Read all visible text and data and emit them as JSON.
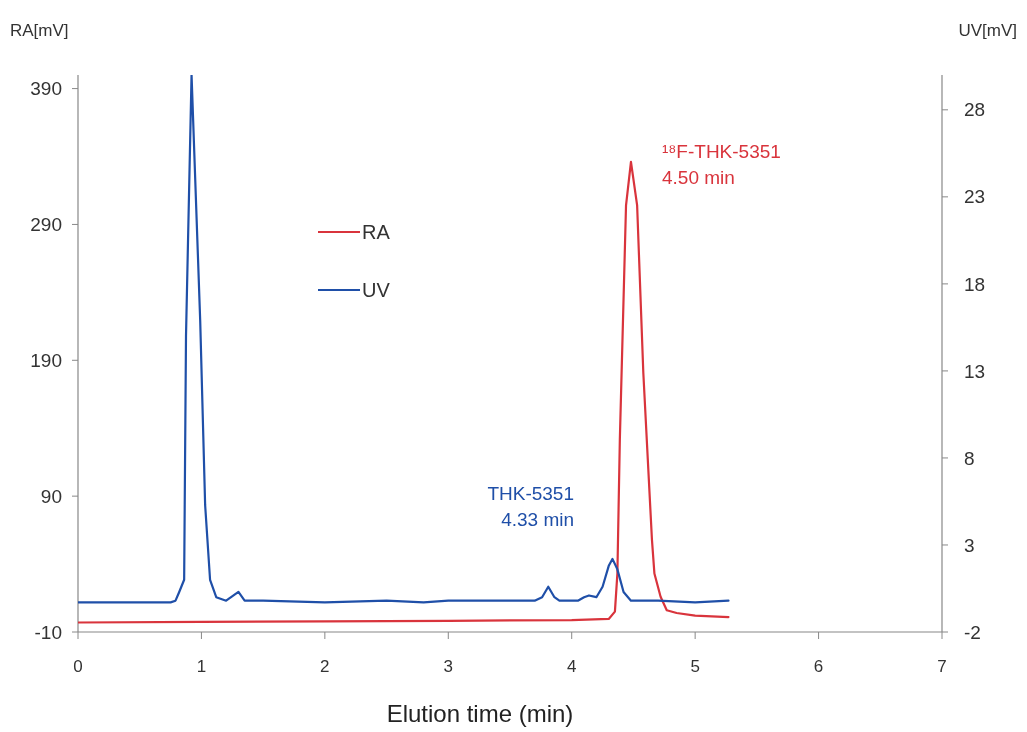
{
  "chart_data": {
    "type": "line",
    "xlabel": "Elution time (min)",
    "ylabel": "RA[mV]",
    "y2label": "UV[mV]",
    "xlim": [
      0,
      7
    ],
    "xticks": [
      0,
      1,
      2,
      3,
      4,
      5,
      6,
      7
    ],
    "ylim": [
      -10,
      400
    ],
    "yticks": [
      -10,
      90,
      190,
      290,
      390
    ],
    "y2lim": [
      -2,
      30
    ],
    "y2ticks": [
      -2,
      3,
      8,
      13,
      18,
      23,
      28
    ],
    "grid": false,
    "legend": "top left",
    "annotations": [
      "¹⁸F-THK-5351\n4.50 min",
      "THK-5351\n4.33 min"
    ],
    "series": [
      {
        "name": "RA",
        "color": "#d9343c",
        "x": [
          0,
          1,
          2,
          3,
          4,
          4.3,
          4.35,
          4.37,
          4.39,
          4.44,
          4.48,
          4.53,
          4.58,
          4.65,
          4.67,
          4.72,
          4.77,
          4.85,
          5,
          5.27
        ],
        "values": [
          -3,
          -2.6,
          -2.2,
          -1.8,
          -1.2,
          -0.4,
          5,
          33,
          132,
          304,
          336,
          304,
          181,
          58,
          33,
          16,
          6,
          4,
          2,
          1
        ]
      },
      {
        "name": "UV",
        "color": "#1f4fa8",
        "axis": "y2",
        "x": [
          0,
          0.5,
          0.75,
          0.79,
          0.82,
          0.86,
          0.875,
          0.92,
          0.99,
          1.03,
          1.07,
          1.12,
          1.2,
          1.3,
          1.35,
          1.5,
          2,
          2.5,
          2.8,
          3,
          3.5,
          3.7,
          3.76,
          3.81,
          3.86,
          3.9,
          4.05,
          4.1,
          4.14,
          4.2,
          4.25,
          4.3,
          4.33,
          4.37,
          4.42,
          4.48,
          4.7,
          5,
          5.27
        ],
        "values": [
          -0.3,
          -0.3,
          -0.3,
          -0.2,
          0.3,
          1,
          15,
          30,
          15.9,
          5.3,
          1,
          0,
          -0.2,
          0.3,
          -0.2,
          -0.2,
          -0.3,
          -0.2,
          -0.3,
          -0.2,
          -0.2,
          -0.2,
          0,
          0.6,
          0,
          -0.2,
          -0.2,
          0,
          0.1,
          0,
          0.6,
          1.8,
          2.2,
          1.6,
          0.3,
          -0.2,
          -0.2,
          -0.3,
          -0.2
        ]
      }
    ]
  }
}
